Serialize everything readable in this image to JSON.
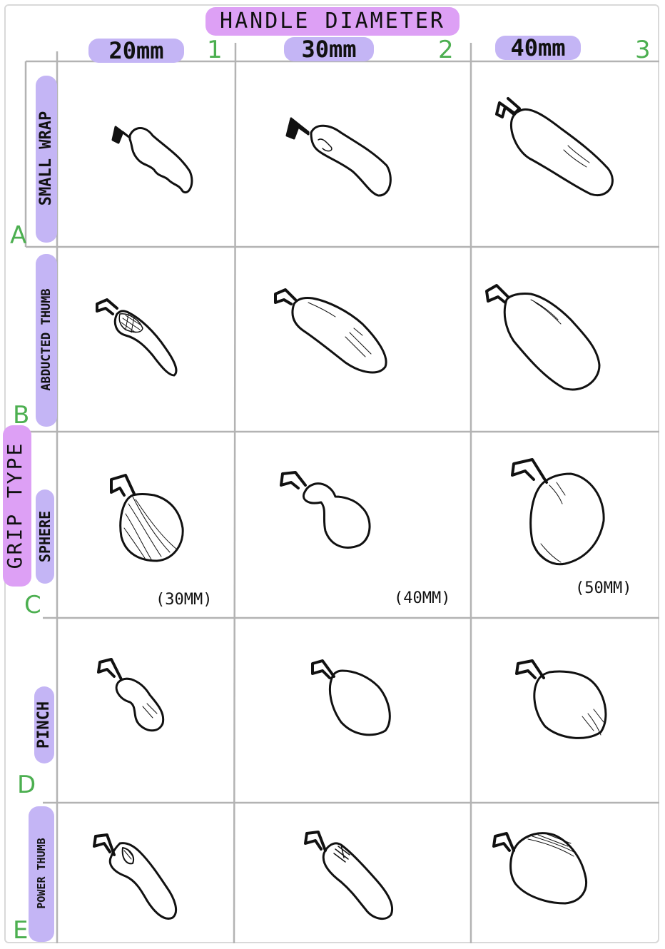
{
  "header": {
    "title": "HANDLE DIAMETER",
    "columns": [
      {
        "label": "20mm",
        "index": "1"
      },
      {
        "label": "30mm",
        "index": "2"
      },
      {
        "label": "40mm",
        "index": "3"
      }
    ]
  },
  "side": {
    "title": "GRIP TYPE",
    "rows": [
      {
        "label": "SMALL WRAP",
        "letter": "A"
      },
      {
        "label": "ABDUCTED THUMB",
        "letter": "B"
      },
      {
        "label": "SPHERE",
        "letter": "C"
      },
      {
        "label": "PINCH",
        "letter": "D"
      },
      {
        "label": "POWER THUMB",
        "letter": "E"
      }
    ]
  },
  "sphere_sizes": [
    "(30MM)",
    "(40MM)",
    "(50MM)"
  ],
  "colors": {
    "highlight_purple": "#c4b5f5",
    "highlight_pink": "#dda0f5",
    "index_green": "#4caf50",
    "grid_line": "#b3b3b3"
  }
}
